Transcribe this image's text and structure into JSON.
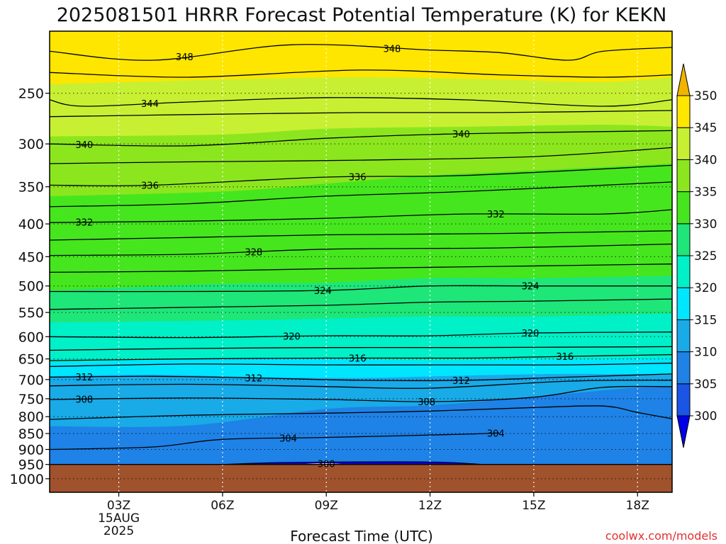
{
  "chart_data": {
    "type": "heatmap",
    "title": "2025081501 HRRR Forecast Potential Temperature (K) for KEKN",
    "xlabel": "Forecast Time (UTC)",
    "ylabel": "",
    "credit": "coolwx.com/models",
    "x_range_hours": [
      1,
      19
    ],
    "y_scale": "log-pressure",
    "y_range_hPa": [
      1050,
      200
    ],
    "x_ticks": [
      {
        "hour": 3,
        "label": "03Z",
        "sub1": "15AUG",
        "sub2": "2025"
      },
      {
        "hour": 6,
        "label": "06Z",
        "sub1": "",
        "sub2": ""
      },
      {
        "hour": 9,
        "label": "09Z",
        "sub1": "",
        "sub2": ""
      },
      {
        "hour": 12,
        "label": "12Z",
        "sub1": "",
        "sub2": ""
      },
      {
        "hour": 15,
        "label": "15Z",
        "sub1": "",
        "sub2": ""
      },
      {
        "hour": 18,
        "label": "18Z",
        "sub1": "",
        "sub2": ""
      }
    ],
    "y_ticks": [
      250,
      300,
      350,
      400,
      450,
      500,
      550,
      600,
      650,
      700,
      750,
      800,
      850,
      900,
      950,
      1000
    ],
    "surface_pressure_hPa": 950,
    "colorbar": {
      "levels": [
        300,
        305,
        310,
        315,
        320,
        325,
        330,
        335,
        340,
        345,
        350
      ],
      "colors": [
        "#0000e6",
        "#1a55e6",
        "#1e82e6",
        "#19aae8",
        "#00e6ff",
        "#00f0c8",
        "#1ee678",
        "#46e61e",
        "#8ce61e",
        "#c8f032",
        "#ffe600",
        "#f0b400"
      ],
      "extend": "both"
    },
    "fill_bands": [
      {
        "value": 350,
        "color": "#ffe600",
        "pressure_by_hour": [
          [
            1,
            210
          ],
          [
            19,
            210
          ]
        ]
      },
      {
        "value": 345,
        "color": "#c8f032",
        "pressure_by_hour": [
          [
            1,
            242
          ],
          [
            6,
            238
          ],
          [
            10,
            236
          ],
          [
            14,
            238
          ],
          [
            17,
            240
          ],
          [
            19,
            236
          ]
        ]
      },
      {
        "value": 340,
        "color": "#8ce61e",
        "pressure_by_hour": [
          [
            1,
            292
          ],
          [
            6,
            290
          ],
          [
            9,
            284
          ],
          [
            13,
            282
          ],
          [
            17,
            280
          ],
          [
            19,
            282
          ]
        ]
      },
      {
        "value": 335,
        "color": "#46e61e",
        "pressure_by_hour": [
          [
            1,
            362
          ],
          [
            6,
            356
          ],
          [
            9,
            346
          ],
          [
            12,
            336
          ],
          [
            15,
            330
          ],
          [
            19,
            322
          ]
        ]
      },
      {
        "value": 330,
        "color": "#1ee678",
        "pressure_by_hour": [
          [
            1,
            508
          ],
          [
            6,
            496
          ],
          [
            9,
            494
          ],
          [
            12,
            486
          ],
          [
            15,
            486
          ],
          [
            19,
            482
          ]
        ]
      },
      {
        "value": 325,
        "color": "#00f0c8",
        "pressure_by_hour": [
          [
            1,
            570
          ],
          [
            6,
            566
          ],
          [
            9,
            562
          ],
          [
            12,
            558
          ],
          [
            15,
            558
          ],
          [
            19,
            552
          ]
        ]
      },
      {
        "value": 320,
        "color": "#00e6ff",
        "pressure_by_hour": [
          [
            1,
            658
          ],
          [
            6,
            650
          ],
          [
            9,
            650
          ],
          [
            12,
            655
          ],
          [
            15,
            652
          ],
          [
            19,
            648
          ]
        ]
      },
      {
        "value": 315,
        "color": "#19aae8",
        "pressure_by_hour": [
          [
            1,
            692
          ],
          [
            4,
            688
          ],
          [
            7,
            694
          ],
          [
            10,
            696
          ],
          [
            13,
            690
          ],
          [
            16,
            686
          ],
          [
            19,
            688
          ]
        ]
      },
      {
        "value": 310,
        "color": "#1e82e6",
        "pressure_by_hour": [
          [
            1,
            828
          ],
          [
            5,
            826
          ],
          [
            9,
            778
          ],
          [
            12,
            768
          ],
          [
            15,
            745
          ],
          [
            18,
            720
          ],
          [
            19,
            720
          ]
        ]
      },
      {
        "value": 305,
        "color": "#1a55e6",
        "pressure_by_hour": [
          [
            1,
            950
          ],
          [
            19,
            950
          ]
        ]
      }
    ],
    "contours": [
      {
        "level": 348,
        "pressure_by_hour": [
          [
            1,
            215
          ],
          [
            4,
            222
          ],
          [
            8,
            210
          ],
          [
            12,
            214
          ],
          [
            14,
            216
          ],
          [
            16,
            222
          ],
          [
            17,
            215
          ],
          [
            19,
            212
          ]
        ],
        "labels": [
          {
            "hour": 4.9,
            "text": "348"
          },
          {
            "hour": 10.9,
            "text": "348"
          }
        ]
      },
      {
        "level": 346,
        "pressure_by_hour": [
          [
            1,
            232
          ],
          [
            5,
            236
          ],
          [
            10,
            230
          ],
          [
            14,
            234
          ],
          [
            17,
            236
          ],
          [
            19,
            234
          ]
        ],
        "labels": []
      },
      {
        "level": 344,
        "pressure_by_hour": [
          [
            1,
            256
          ],
          [
            2,
            262
          ],
          [
            5,
            258
          ],
          [
            9,
            254
          ],
          [
            13,
            256
          ],
          [
            17,
            262
          ],
          [
            19,
            256
          ]
        ],
        "labels": [
          {
            "hour": 3.9,
            "text": "344"
          }
        ]
      },
      {
        "level": 342,
        "pressure_by_hour": [
          [
            1,
            272
          ],
          [
            5,
            270
          ],
          [
            10,
            268
          ],
          [
            14,
            268
          ],
          [
            19,
            266
          ]
        ],
        "labels": []
      },
      {
        "level": 340,
        "pressure_by_hour": [
          [
            1,
            300
          ],
          [
            5,
            302
          ],
          [
            9,
            294
          ],
          [
            12,
            290
          ],
          [
            15,
            288
          ],
          [
            19,
            286
          ]
        ],
        "labels": [
          {
            "hour": 2.0,
            "text": "340"
          },
          {
            "hour": 12.9,
            "text": "340"
          }
        ]
      },
      {
        "level": 338,
        "pressure_by_hour": [
          [
            1,
            322
          ],
          [
            5,
            320
          ],
          [
            10,
            318
          ],
          [
            15,
            314
          ],
          [
            19,
            304
          ]
        ],
        "labels": []
      },
      {
        "level": 336,
        "pressure_by_hour": [
          [
            1,
            348
          ],
          [
            4,
            348
          ],
          [
            9,
            338
          ],
          [
            13,
            336
          ],
          [
            19,
            324
          ]
        ],
        "labels": [
          {
            "hour": 3.9,
            "text": "336"
          },
          {
            "hour": 9.9,
            "text": "336"
          }
        ]
      },
      {
        "level": 334,
        "pressure_by_hour": [
          [
            1,
            376
          ],
          [
            5,
            372
          ],
          [
            9,
            362
          ],
          [
            13,
            356
          ],
          [
            19,
            344
          ]
        ],
        "labels": []
      },
      {
        "level": 332,
        "pressure_by_hour": [
          [
            1,
            398
          ],
          [
            5,
            396
          ],
          [
            9,
            392
          ],
          [
            13,
            386
          ],
          [
            17,
            386
          ],
          [
            19,
            380
          ]
        ],
        "labels": [
          {
            "hour": 2.0,
            "text": "332"
          },
          {
            "hour": 13.9,
            "text": "332"
          }
        ]
      },
      {
        "level": 330,
        "pressure_by_hour": [
          [
            1,
            424
          ],
          [
            5,
            420
          ],
          [
            9,
            416
          ],
          [
            14,
            414
          ],
          [
            19,
            410
          ]
        ],
        "labels": []
      },
      {
        "level": 328,
        "pressure_by_hour": [
          [
            1,
            448
          ],
          [
            5,
            446
          ],
          [
            9,
            438
          ],
          [
            14,
            436
          ],
          [
            19,
            430
          ]
        ],
        "labels": [
          {
            "hour": 6.9,
            "text": "328"
          }
        ]
      },
      {
        "level": 326,
        "pressure_by_hour": [
          [
            1,
            476
          ],
          [
            5,
            474
          ],
          [
            9,
            470
          ],
          [
            14,
            466
          ],
          [
            19,
            462
          ]
        ],
        "labels": []
      },
      {
        "level": 324,
        "pressure_by_hour": [
          [
            1,
            510
          ],
          [
            5,
            510
          ],
          [
            9,
            508
          ],
          [
            12,
            500
          ],
          [
            15,
            500
          ],
          [
            19,
            500
          ]
        ],
        "labels": [
          {
            "hour": 8.9,
            "text": "324"
          },
          {
            "hour": 14.9,
            "text": "324"
          }
        ]
      },
      {
        "level": 322,
        "pressure_by_hour": [
          [
            1,
            544
          ],
          [
            5,
            540
          ],
          [
            9,
            536
          ],
          [
            12,
            530
          ],
          [
            15,
            528
          ],
          [
            19,
            524
          ]
        ],
        "labels": []
      },
      {
        "level": 320,
        "pressure_by_hour": [
          [
            1,
            600
          ],
          [
            5,
            602
          ],
          [
            9,
            598
          ],
          [
            12,
            598
          ],
          [
            15,
            592
          ],
          [
            19,
            590
          ]
        ],
        "labels": [
          {
            "hour": 8.0,
            "text": "320"
          },
          {
            "hour": 14.9,
            "text": "320"
          }
        ]
      },
      {
        "level": 318,
        "pressure_by_hour": [
          [
            1,
            630
          ],
          [
            5,
            626
          ],
          [
            9,
            624
          ],
          [
            13,
            624
          ],
          [
            19,
            622
          ]
        ],
        "labels": []
      },
      {
        "level": 316,
        "pressure_by_hour": [
          [
            1,
            654
          ],
          [
            5,
            650
          ],
          [
            9,
            648
          ],
          [
            13,
            648
          ],
          [
            16,
            644
          ],
          [
            19,
            640
          ]
        ],
        "labels": [
          {
            "hour": 9.9,
            "text": "316"
          },
          {
            "hour": 15.9,
            "text": "316"
          }
        ]
      },
      {
        "level": 314,
        "pressure_by_hour": [
          [
            1,
            668
          ],
          [
            5,
            662
          ],
          [
            9,
            664
          ],
          [
            13,
            664
          ],
          [
            16,
            664
          ],
          [
            19,
            660
          ]
        ],
        "labels": []
      },
      {
        "level": 312,
        "pressure_by_hour": [
          [
            1,
            694
          ],
          [
            4,
            692
          ],
          [
            7,
            696
          ],
          [
            10,
            702
          ],
          [
            13,
            702
          ],
          [
            16,
            694
          ],
          [
            19,
            686
          ]
        ],
        "labels": [
          {
            "hour": 2.0,
            "text": "312"
          },
          {
            "hour": 6.9,
            "text": "312"
          },
          {
            "hour": 12.9,
            "text": "312"
          }
        ]
      },
      {
        "level": 310,
        "pressure_by_hour": [
          [
            1,
            716
          ],
          [
            5,
            712
          ],
          [
            9,
            718
          ],
          [
            12,
            722
          ],
          [
            16,
            704
          ],
          [
            19,
            702
          ]
        ],
        "labels": []
      },
      {
        "level": 308,
        "pressure_by_hour": [
          [
            1,
            752
          ],
          [
            5,
            748
          ],
          [
            9,
            752
          ],
          [
            12,
            758
          ],
          [
            15,
            746
          ],
          [
            17,
            720
          ],
          [
            19,
            718
          ]
        ],
        "labels": [
          {
            "hour": 2.0,
            "text": "308"
          },
          {
            "hour": 11.9,
            "text": "308"
          }
        ]
      },
      {
        "level": 306,
        "pressure_by_hour": [
          [
            1,
            808
          ],
          [
            5,
            796
          ],
          [
            9,
            790
          ],
          [
            12,
            784
          ],
          [
            15,
            774
          ],
          [
            17,
            770
          ],
          [
            18,
            788
          ],
          [
            19,
            806
          ]
        ],
        "labels": []
      },
      {
        "level": 304,
        "pressure_by_hour": [
          [
            1,
            900
          ],
          [
            4,
            892
          ],
          [
            6,
            868
          ],
          [
            9,
            862
          ],
          [
            13,
            852
          ],
          [
            14,
            848
          ]
        ],
        "labels": [
          {
            "hour": 7.9,
            "text": "304"
          },
          {
            "hour": 13.9,
            "text": "304"
          }
        ]
      },
      {
        "level": 302,
        "pressure_by_hour": [
          [
            1,
            950
          ],
          [
            19,
            950
          ]
        ],
        "labels": []
      },
      {
        "level": 300,
        "pressure_by_hour": [],
        "labels": [
          {
            "hour": 9.0,
            "text": "300"
          }
        ]
      }
    ]
  }
}
